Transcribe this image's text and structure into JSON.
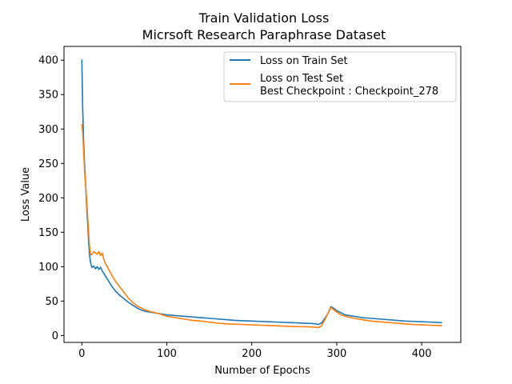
{
  "chart_data": {
    "type": "line",
    "title": "Train Validation Loss",
    "subtitle": "Micrsoft Research Paraphrase Dataset",
    "xlabel": "Number of Epochs",
    "ylabel": "Loss Value",
    "xlim": [
      -21,
      446
    ],
    "ylim": [
      -10,
      420
    ],
    "xticks": [
      0,
      100,
      200,
      300,
      400
    ],
    "yticks": [
      0,
      50,
      100,
      150,
      200,
      250,
      300,
      350,
      400
    ],
    "grid": false,
    "legend": "top-right",
    "series": [
      {
        "name": "Loss on Train Set",
        "color": "#1f77b4",
        "x": [
          0,
          1,
          2,
          3,
          4,
          5,
          6,
          7,
          8,
          9,
          10,
          11,
          12,
          14,
          16,
          18,
          20,
          22,
          24,
          26,
          28,
          30,
          35,
          40,
          45,
          50,
          55,
          60,
          65,
          70,
          75,
          80,
          90,
          100,
          110,
          120,
          130,
          140,
          150,
          160,
          170,
          180,
          190,
          200,
          210,
          220,
          230,
          240,
          250,
          260,
          270,
          275,
          278,
          282,
          286,
          290,
          293,
          296,
          300,
          305,
          310,
          320,
          330,
          340,
          350,
          360,
          370,
          380,
          390,
          400,
          410,
          420,
          424
        ],
        "y": [
          401,
          330,
          285,
          255,
          230,
          205,
          180,
          160,
          135,
          118,
          108,
          102,
          99,
          101,
          97,
          100,
          96,
          99,
          94,
          90,
          86,
          82,
          72,
          64,
          58,
          53,
          48,
          44,
          40,
          37,
          35,
          34,
          32,
          30,
          29,
          28,
          27,
          26,
          25,
          24,
          23,
          22,
          21.5,
          21,
          20.5,
          20,
          19.5,
          19,
          18.5,
          18,
          17.5,
          17,
          16,
          18,
          25,
          33,
          42,
          40,
          36,
          33,
          30,
          28,
          26,
          25,
          24,
          23,
          22,
          21,
          20.5,
          20,
          19.5,
          19,
          18.5
        ]
      },
      {
        "name": "Loss on Test Set",
        "color": "#ff7f0e",
        "x": [
          0,
          1,
          2,
          3,
          4,
          5,
          6,
          7,
          8,
          9,
          10,
          11,
          12,
          14,
          16,
          18,
          20,
          22,
          24,
          26,
          28,
          30,
          35,
          40,
          45,
          50,
          55,
          60,
          65,
          70,
          75,
          80,
          90,
          100,
          110,
          120,
          130,
          140,
          150,
          160,
          170,
          180,
          190,
          200,
          210,
          220,
          230,
          240,
          250,
          260,
          270,
          275,
          278,
          282,
          286,
          290,
          293,
          296,
          300,
          305,
          310,
          320,
          330,
          340,
          350,
          360,
          370,
          380,
          390,
          400,
          410,
          420,
          424
        ],
        "y": [
          307,
          295,
          270,
          245,
          225,
          210,
          190,
          170,
          150,
          130,
          120,
          117,
          118,
          122,
          120,
          118,
          122,
          116,
          120,
          110,
          104,
          100,
          88,
          78,
          70,
          62,
          54,
          48,
          43,
          40,
          37,
          35,
          32,
          28,
          26,
          24,
          22,
          21,
          19.5,
          18,
          17,
          16.5,
          16,
          15.5,
          15,
          14.5,
          14,
          13.5,
          13,
          12.8,
          12.5,
          12,
          11.5,
          14,
          23,
          33,
          41,
          38,
          34,
          30,
          28,
          25,
          23,
          21,
          20,
          19,
          18,
          17,
          16,
          15.5,
          15,
          14.5,
          14
        ]
      }
    ],
    "legend_extra": "Best Checkpoint : Checkpoint_278"
  }
}
